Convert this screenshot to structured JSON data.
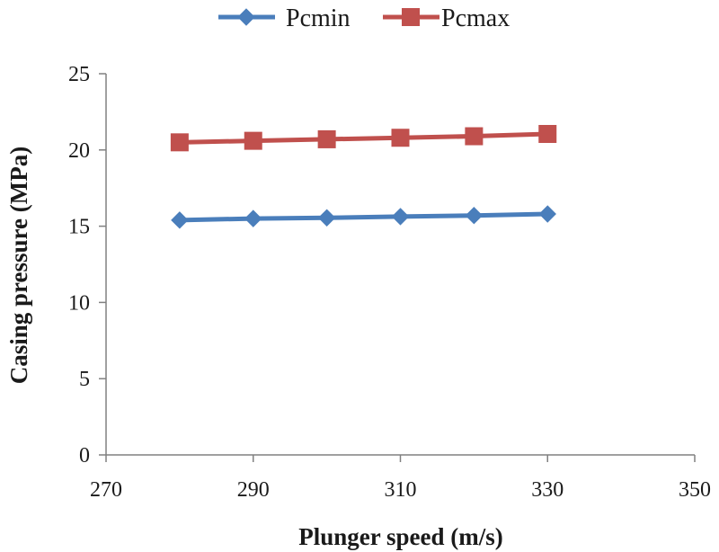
{
  "chart_data": {
    "type": "line",
    "title": "",
    "xlabel": "Plunger speed (m/s)",
    "ylabel": "Casing pressure (MPa)",
    "xlim": [
      270,
      350
    ],
    "ylim": [
      0,
      25
    ],
    "xticks": [
      270,
      290,
      310,
      330,
      350
    ],
    "yticks": [
      0,
      5,
      10,
      15,
      20,
      25
    ],
    "grid": false,
    "legend_position": "top-center",
    "series": [
      {
        "name": "Pcmin",
        "color": "#4a7ebb",
        "marker": "diamond",
        "x": [
          280,
          290,
          300,
          310,
          320,
          330
        ],
        "y": [
          15.4,
          15.5,
          15.55,
          15.63,
          15.7,
          15.8
        ]
      },
      {
        "name": "Pcmax",
        "color": "#c0504d",
        "marker": "square",
        "x": [
          280,
          290,
          300,
          310,
          320,
          330
        ],
        "y": [
          20.5,
          20.6,
          20.7,
          20.8,
          20.9,
          21.05
        ]
      }
    ]
  }
}
